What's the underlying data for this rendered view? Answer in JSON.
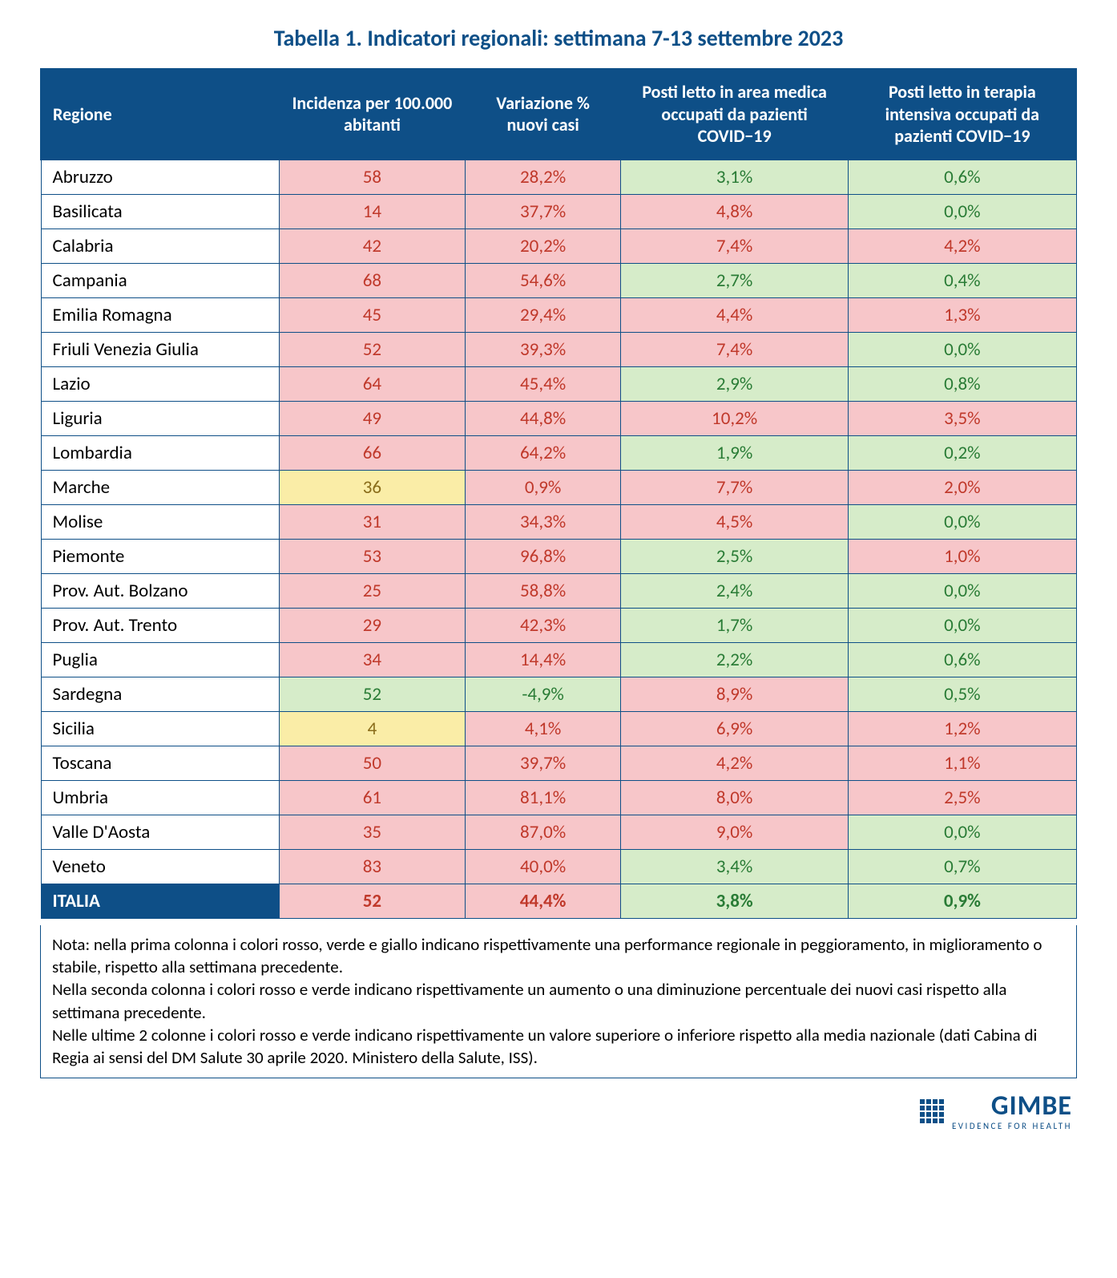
{
  "title": "Tabella 1. Indicatori regionali: settimana 7-13 settembre 2023",
  "columns": {
    "region": "Regione",
    "incidence": "Incidenza per 100.000 abitanti",
    "variation": "Variazione % nuovi casi",
    "medical": "Posti letto in area medica occupati da pazienti COVID−19",
    "icu": "Posti letto in terapia intensiva occupati da pazienti COVID−19"
  },
  "colors": {
    "header_bg": "#0e4f87",
    "header_text": "#ffffff",
    "red_bg": "#f7c6c9",
    "red_text": "#c0392b",
    "green_bg": "#d6ecc9",
    "green_text": "#2a7c36",
    "yellow_bg": "#faeda7",
    "yellow_text": "#8a6d1b",
    "border": "#0e4f87"
  },
  "rows": [
    {
      "region": "Abruzzo",
      "inc": "58",
      "inc_c": "red",
      "var": "28,2%",
      "var_c": "red",
      "med": "3,1%",
      "med_c": "green",
      "icu": "0,6%",
      "icu_c": "green"
    },
    {
      "region": "Basilicata",
      "inc": "14",
      "inc_c": "red",
      "var": "37,7%",
      "var_c": "red",
      "med": "4,8%",
      "med_c": "red",
      "icu": "0,0%",
      "icu_c": "green"
    },
    {
      "region": "Calabria",
      "inc": "42",
      "inc_c": "red",
      "var": "20,2%",
      "var_c": "red",
      "med": "7,4%",
      "med_c": "red",
      "icu": "4,2%",
      "icu_c": "red"
    },
    {
      "region": "Campania",
      "inc": "68",
      "inc_c": "red",
      "var": "54,6%",
      "var_c": "red",
      "med": "2,7%",
      "med_c": "green",
      "icu": "0,4%",
      "icu_c": "green"
    },
    {
      "region": "Emilia Romagna",
      "inc": "45",
      "inc_c": "red",
      "var": "29,4%",
      "var_c": "red",
      "med": "4,4%",
      "med_c": "red",
      "icu": "1,3%",
      "icu_c": "red"
    },
    {
      "region": "Friuli Venezia Giulia",
      "inc": "52",
      "inc_c": "red",
      "var": "39,3%",
      "var_c": "red",
      "med": "7,4%",
      "med_c": "red",
      "icu": "0,0%",
      "icu_c": "green"
    },
    {
      "region": "Lazio",
      "inc": "64",
      "inc_c": "red",
      "var": "45,4%",
      "var_c": "red",
      "med": "2,9%",
      "med_c": "green",
      "icu": "0,8%",
      "icu_c": "green"
    },
    {
      "region": "Liguria",
      "inc": "49",
      "inc_c": "red",
      "var": "44,8%",
      "var_c": "red",
      "med": "10,2%",
      "med_c": "red",
      "icu": "3,5%",
      "icu_c": "red"
    },
    {
      "region": "Lombardia",
      "inc": "66",
      "inc_c": "red",
      "var": "64,2%",
      "var_c": "red",
      "med": "1,9%",
      "med_c": "green",
      "icu": "0,2%",
      "icu_c": "green"
    },
    {
      "region": "Marche",
      "inc": "36",
      "inc_c": "yellow",
      "var": "0,9%",
      "var_c": "red",
      "med": "7,7%",
      "med_c": "red",
      "icu": "2,0%",
      "icu_c": "red"
    },
    {
      "region": "Molise",
      "inc": "31",
      "inc_c": "red",
      "var": "34,3%",
      "var_c": "red",
      "med": "4,5%",
      "med_c": "red",
      "icu": "0,0%",
      "icu_c": "green"
    },
    {
      "region": "Piemonte",
      "inc": "53",
      "inc_c": "red",
      "var": "96,8%",
      "var_c": "red",
      "med": "2,5%",
      "med_c": "green",
      "icu": "1,0%",
      "icu_c": "red"
    },
    {
      "region": "Prov. Aut. Bolzano",
      "inc": "25",
      "inc_c": "red",
      "var": "58,8%",
      "var_c": "red",
      "med": "2,4%",
      "med_c": "green",
      "icu": "0,0%",
      "icu_c": "green"
    },
    {
      "region": "Prov. Aut. Trento",
      "inc": "29",
      "inc_c": "red",
      "var": "42,3%",
      "var_c": "red",
      "med": "1,7%",
      "med_c": "green",
      "icu": "0,0%",
      "icu_c": "green"
    },
    {
      "region": "Puglia",
      "inc": "34",
      "inc_c": "red",
      "var": "14,4%",
      "var_c": "red",
      "med": "2,2%",
      "med_c": "green",
      "icu": "0,6%",
      "icu_c": "green"
    },
    {
      "region": "Sardegna",
      "inc": "52",
      "inc_c": "green",
      "var": "-4,9%",
      "var_c": "green",
      "med": "8,9%",
      "med_c": "red",
      "icu": "0,5%",
      "icu_c": "green"
    },
    {
      "region": "Sicilia",
      "inc": "4",
      "inc_c": "yellow",
      "var": "4,1%",
      "var_c": "red",
      "med": "6,9%",
      "med_c": "red",
      "icu": "1,2%",
      "icu_c": "red"
    },
    {
      "region": "Toscana",
      "inc": "50",
      "inc_c": "red",
      "var": "39,7%",
      "var_c": "red",
      "med": "4,2%",
      "med_c": "red",
      "icu": "1,1%",
      "icu_c": "red"
    },
    {
      "region": "Umbria",
      "inc": "61",
      "inc_c": "red",
      "var": "81,1%",
      "var_c": "red",
      "med": "8,0%",
      "med_c": "red",
      "icu": "2,5%",
      "icu_c": "red"
    },
    {
      "region": "Valle D'Aosta",
      "inc": "35",
      "inc_c": "red",
      "var": "87,0%",
      "var_c": "red",
      "med": "9,0%",
      "med_c": "red",
      "icu": "0,0%",
      "icu_c": "green"
    },
    {
      "region": "Veneto",
      "inc": "83",
      "inc_c": "red",
      "var": "40,0%",
      "var_c": "red",
      "med": "3,4%",
      "med_c": "green",
      "icu": "0,7%",
      "icu_c": "green"
    }
  ],
  "total": {
    "region": "ITALIA",
    "inc": "52",
    "inc_c": "red",
    "var": "44,4%",
    "var_c": "red",
    "med": "3,8%",
    "med_c": "green",
    "icu": "0,9%",
    "icu_c": "green"
  },
  "note_lines": [
    "Nota: nella prima colonna i colori rosso, verde e giallo indicano rispettivamente una performance regionale in peggioramento, in miglioramento o stabile, rispetto alla settimana precedente.",
    "Nella seconda colonna i colori rosso e verde indicano rispettivamente un aumento o una diminuzione percentuale dei nuovi casi rispetto alla settimana precedente.",
    "Nelle ultime 2 colonne i colori rosso e verde indicano rispettivamente un valore superiore o inferiore rispetto alla media nazionale (dati Cabina di Regia ai sensi del DM Salute 30 aprile 2020. Ministero della Salute, ISS)."
  ],
  "logo": {
    "name": "GIMBE",
    "tagline": "EVIDENCE FOR HEALTH"
  }
}
